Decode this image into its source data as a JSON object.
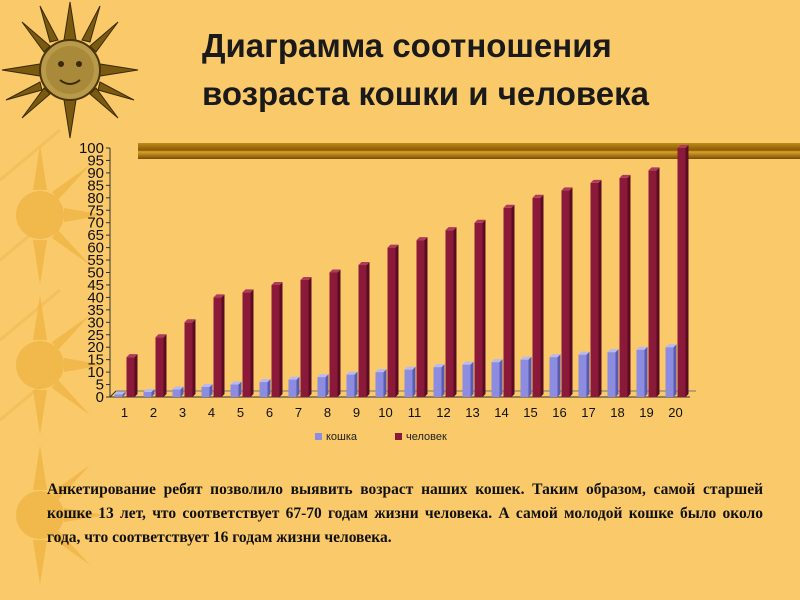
{
  "slide": {
    "title_line1": "Диаграмма соотношения",
    "title_line2": "возраста кошки и человека",
    "caption": "Анкетирование ребят позволило выявить возраст наших кошек. Таким образом, самой старшей кошке 13 лет, что соответствует 67-70 годам жизни человека. А самой молодой кошке было около года, что соответствует 16 годам жизни человека."
  },
  "icons": {
    "sun_face": "sun-face-icon",
    "sun_deco": "sun-icon"
  },
  "colors": {
    "background": "#f9c96a",
    "cat_bar": "#8c8ce0",
    "human_bar": "#8b1a3a",
    "gold": "#b07a10"
  },
  "chart_data": {
    "type": "bar",
    "categories": [
      "1",
      "2",
      "3",
      "4",
      "5",
      "6",
      "7",
      "8",
      "9",
      "10",
      "11",
      "12",
      "13",
      "14",
      "15",
      "16",
      "17",
      "18",
      "19",
      "20"
    ],
    "series": [
      {
        "name": "кошка",
        "values": [
          1,
          2,
          3,
          4,
          5,
          6,
          7,
          8,
          9,
          10,
          11,
          12,
          13,
          14,
          15,
          16,
          17,
          18,
          19,
          20
        ]
      },
      {
        "name": "человек",
        "values": [
          16,
          24,
          30,
          40,
          42,
          45,
          47,
          50,
          53,
          60,
          63,
          67,
          70,
          76,
          80,
          83,
          86,
          88,
          91,
          100
        ]
      }
    ],
    "title": "",
    "xlabel": "",
    "ylabel": "",
    "ylim": [
      0,
      100
    ],
    "yticks": [
      0,
      5,
      10,
      15,
      20,
      25,
      30,
      35,
      40,
      45,
      50,
      55,
      60,
      65,
      70,
      75,
      80,
      85,
      90,
      95,
      100
    ],
    "legend_position": "bottom",
    "grid": false
  }
}
